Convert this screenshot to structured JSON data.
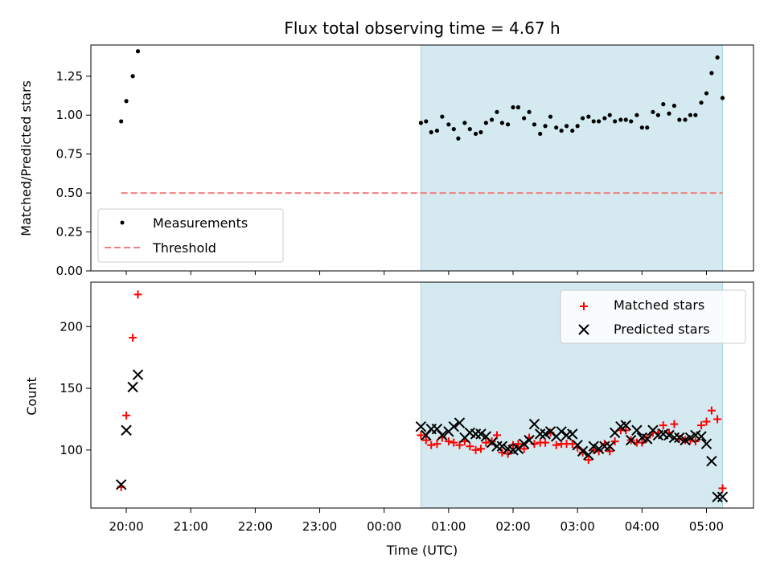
{
  "chart_data": [
    {
      "type": "scatter",
      "title": "Flux total observing time = 4.67 h",
      "xlabel": "",
      "ylabel": "Matched/Predicted stars",
      "ylim": [
        0.0,
        1.45
      ],
      "yticks": [
        "0.00",
        "0.25",
        "0.50",
        "0.75",
        "1.00",
        "1.25"
      ],
      "xlim_hours": [
        19.45,
        29.73
      ],
      "shaded_interval_hours": [
        24.57,
        29.25
      ],
      "shade_color": "#d4eaf0",
      "legend_position": "lower-left",
      "series": [
        {
          "name": "Measurements",
          "color": "#000000",
          "marker": "dot",
          "x_hours": [
            19.92,
            20.0,
            20.1,
            20.18,
            24.57,
            24.65,
            24.73,
            24.82,
            24.9,
            25.0,
            25.08,
            25.15,
            25.25,
            25.33,
            25.42,
            25.5,
            25.58,
            25.67,
            25.75,
            25.83,
            25.92,
            26.0,
            26.08,
            26.17,
            26.25,
            26.33,
            26.42,
            26.5,
            26.58,
            26.67,
            26.75,
            26.83,
            26.92,
            27.0,
            27.08,
            27.17,
            27.25,
            27.33,
            27.42,
            27.5,
            27.58,
            27.67,
            27.75,
            27.83,
            27.92,
            28.0,
            28.08,
            28.17,
            28.25,
            28.33,
            28.42,
            28.5,
            28.58,
            28.67,
            28.75,
            28.83,
            28.92,
            29.0,
            29.08,
            29.17,
            29.25
          ],
          "y": [
            0.96,
            1.09,
            1.25,
            1.41,
            0.95,
            0.96,
            0.89,
            0.9,
            0.99,
            0.94,
            0.91,
            0.85,
            0.95,
            0.91,
            0.88,
            0.89,
            0.95,
            0.97,
            1.02,
            0.95,
            0.94,
            1.05,
            1.05,
            0.98,
            1.02,
            0.94,
            0.88,
            0.93,
            0.99,
            0.92,
            0.9,
            0.93,
            0.9,
            0.93,
            0.98,
            0.99,
            0.96,
            0.96,
            0.98,
            1.0,
            0.96,
            0.97,
            0.97,
            0.96,
            1.0,
            0.92,
            0.92,
            1.02,
            1.0,
            1.07,
            1.01,
            1.06,
            0.97,
            0.97,
            1.0,
            1.0,
            1.08,
            1.14,
            1.27,
            1.37,
            1.11
          ]
        },
        {
          "name": "Threshold",
          "color": "#f08080",
          "marker": "dashed-line",
          "x_hours": [
            19.92,
            29.25
          ],
          "y": [
            0.5,
            0.5
          ]
        }
      ]
    },
    {
      "type": "scatter",
      "title": "",
      "xlabel": "Time (UTC)",
      "ylabel": "Count",
      "ylim": [
        53,
        236
      ],
      "yticks": [
        "100",
        "150",
        "200"
      ],
      "xlim_hours": [
        19.45,
        29.73
      ],
      "xticks": [
        "20:00",
        "21:00",
        "22:00",
        "23:00",
        "00:00",
        "01:00",
        "02:00",
        "03:00",
        "04:00",
        "05:00"
      ],
      "shaded_interval_hours": [
        24.57,
        29.25
      ],
      "shade_color": "#d4eaf0",
      "legend_position": "top-right",
      "series": [
        {
          "name": "Matched stars",
          "color": "#ff0000",
          "marker": "plus",
          "x_hours": [
            19.92,
            20.0,
            20.1,
            20.18,
            24.57,
            24.65,
            24.73,
            24.82,
            24.9,
            25.0,
            25.08,
            25.17,
            25.25,
            25.33,
            25.42,
            25.5,
            25.58,
            25.67,
            25.75,
            25.83,
            25.92,
            26.0,
            26.08,
            26.17,
            26.25,
            26.33,
            26.42,
            26.5,
            26.58,
            26.67,
            26.75,
            26.83,
            26.92,
            27.0,
            27.08,
            27.17,
            27.25,
            27.33,
            27.42,
            27.5,
            27.58,
            27.67,
            27.75,
            27.83,
            27.92,
            28.0,
            28.08,
            28.17,
            28.25,
            28.33,
            28.42,
            28.5,
            28.58,
            28.67,
            28.75,
            28.83,
            28.92,
            29.0,
            29.08,
            29.17,
            29.25
          ],
          "y": [
            70,
            128,
            191,
            226,
            112,
            108,
            104,
            105,
            110,
            107,
            106,
            104,
            107,
            103,
            100,
            101,
            106,
            107,
            112,
            98,
            97,
            104,
            105,
            101,
            110,
            105,
            106,
            106,
            114,
            104,
            105,
            105,
            105,
            102,
            98,
            92,
            100,
            99,
            105,
            99,
            107,
            116,
            116,
            108,
            106,
            106,
            110,
            114,
            114,
            120,
            114,
            121,
            109,
            108,
            108,
            107,
            120,
            123,
            132,
            125,
            69
          ]
        },
        {
          "name": "Predicted stars",
          "color": "#000000",
          "marker": "x",
          "x_hours": [
            19.92,
            20.0,
            20.1,
            20.18,
            24.57,
            24.65,
            24.73,
            24.82,
            24.9,
            25.0,
            25.08,
            25.17,
            25.25,
            25.33,
            25.42,
            25.5,
            25.58,
            25.67,
            25.75,
            25.83,
            25.92,
            26.0,
            26.08,
            26.17,
            26.25,
            26.33,
            26.42,
            26.5,
            26.58,
            26.67,
            26.75,
            26.83,
            26.92,
            27.0,
            27.08,
            27.17,
            27.25,
            27.33,
            27.42,
            27.5,
            27.58,
            27.67,
            27.75,
            27.83,
            27.92,
            28.0,
            28.08,
            28.17,
            28.25,
            28.33,
            28.42,
            28.5,
            28.58,
            28.67,
            28.75,
            28.83,
            28.92,
            29.0,
            29.08,
            29.17,
            29.25
          ],
          "y": [
            72,
            116,
            151,
            161,
            119,
            112,
            117,
            117,
            112,
            115,
            119,
            122,
            110,
            114,
            113,
            113,
            111,
            106,
            103,
            103,
            101,
            100,
            101,
            105,
            108,
            121,
            113,
            113,
            115,
            111,
            115,
            112,
            113,
            104,
            99,
            96,
            103,
            101,
            103,
            103,
            114,
            119,
            120,
            108,
            116,
            110,
            109,
            116,
            112,
            113,
            112,
            110,
            110,
            108,
            110,
            112,
            111,
            105,
            91,
            62,
            62
          ]
        }
      ]
    }
  ]
}
